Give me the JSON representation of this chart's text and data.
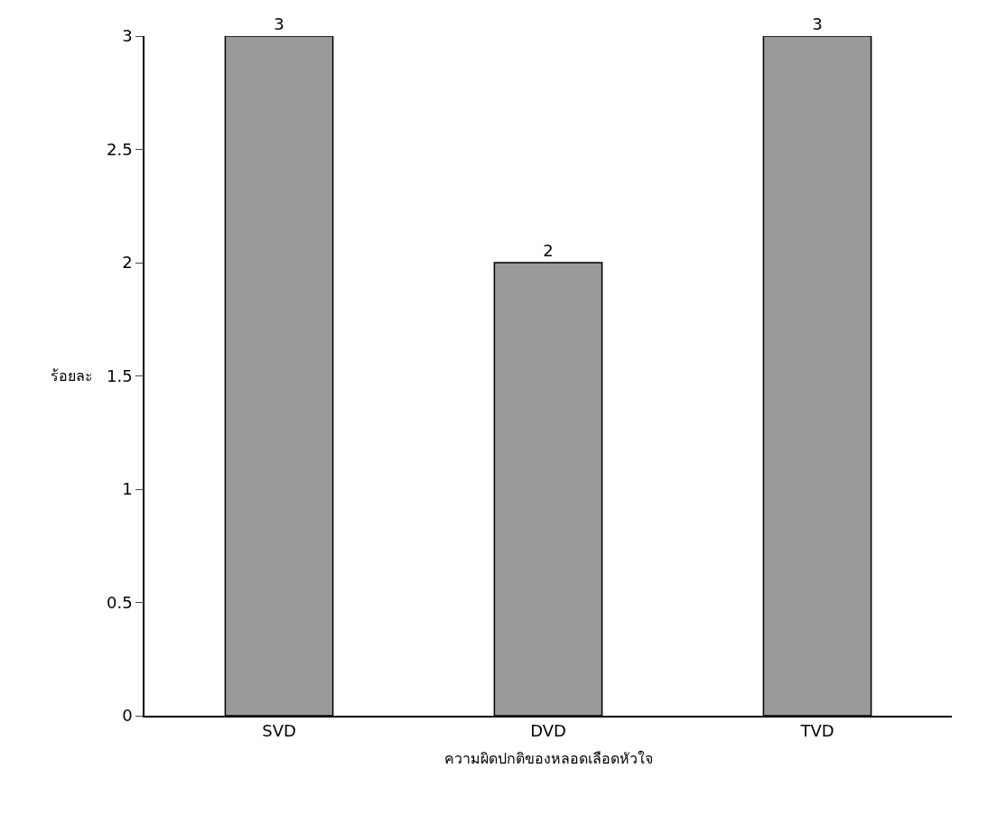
{
  "chart_data": {
    "type": "bar",
    "categories": [
      "SVD",
      "DVD",
      "TVD"
    ],
    "values": [
      3,
      2,
      3
    ],
    "color": "#9a9a9a",
    "data_labels": true,
    "xlabel": "ความผิดปกติของหลอดเลือดหัวใจ",
    "ylabel": "ร้อยละ",
    "ylim": [
      0,
      3
    ],
    "yticks": [
      0,
      0.5,
      1,
      1.5,
      2,
      2.5,
      3
    ],
    "legend": false
  }
}
